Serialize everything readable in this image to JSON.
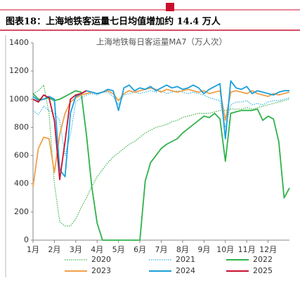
{
  "caption": "图表18：上海地铁客运量七日均值增加约 14.4 万人",
  "chart_data": {
    "type": "line",
    "title": "上海地铁每日客运量MA7（万人次）",
    "x": [
      1,
      1.25,
      1.5,
      1.75,
      2,
      2.25,
      2.5,
      2.75,
      3,
      3.25,
      3.5,
      3.75,
      4,
      4.25,
      4.5,
      4.75,
      5,
      5.25,
      5.5,
      5.75,
      6,
      6.25,
      6.5,
      6.75,
      7,
      7.25,
      7.5,
      7.75,
      8,
      8.25,
      8.5,
      8.75,
      9,
      9.25,
      9.5,
      9.75,
      10,
      10.25,
      10.5,
      10.75,
      11,
      11.25,
      11.5,
      11.75,
      12,
      12.25,
      12.5,
      12.75,
      13
    ],
    "xlim": [
      1,
      13
    ],
    "xticks": [
      {
        "value": 1,
        "label": "1月"
      },
      {
        "value": 2,
        "label": "2月"
      },
      {
        "value": 3,
        "label": "3月"
      },
      {
        "value": 4,
        "label": "4月"
      },
      {
        "value": 5,
        "label": "5月"
      },
      {
        "value": 6,
        "label": "6月"
      },
      {
        "value": 7,
        "label": "7月"
      },
      {
        "value": 8,
        "label": "8月"
      },
      {
        "value": 9,
        "label": "9月"
      },
      {
        "value": 10,
        "label": "10月"
      },
      {
        "value": 11,
        "label": "11月"
      },
      {
        "value": 12,
        "label": "12月"
      }
    ],
    "ylim": [
      0,
      1400
    ],
    "yticks": [
      0,
      200,
      400,
      600,
      800,
      1000,
      1200,
      1400
    ],
    "series": [
      {
        "name": "2020",
        "color": "#3cb44b",
        "style": "dotted",
        "values": [
          1040,
          1060,
          1100,
          900,
          400,
          130,
          100,
          100,
          150,
          230,
          300,
          380,
          450,
          500,
          550,
          590,
          620,
          650,
          680,
          700,
          730,
          760,
          780,
          800,
          810,
          820,
          840,
          850,
          870,
          880,
          890,
          900,
          900,
          900,
          910,
          920,
          920,
          930,
          930,
          930,
          940,
          930,
          940,
          950,
          960,
          970,
          980,
          990,
          1000
        ]
      },
      {
        "name": "2021",
        "color": "#35b5e5",
        "style": "dotted",
        "values": [
          920,
          890,
          950,
          920,
          900,
          850,
          600,
          750,
          980,
          1010,
          1030,
          1040,
          1030,
          1050,
          1050,
          1020,
          960,
          1030,
          1040,
          1050,
          1040,
          1050,
          1060,
          1050,
          1060,
          1040,
          1050,
          1060,
          1050,
          1040,
          1050,
          1040,
          1030,
          1010,
          1000,
          990,
          800,
          960,
          980,
          980,
          990,
          960,
          970,
          960,
          980,
          990,
          990,
          1000,
          1010
        ]
      },
      {
        "name": "2022",
        "color": "#2fb24a",
        "style": "solid",
        "values": [
          1040,
          1000,
          1000,
          1010,
          990,
          1000,
          1020,
          1040,
          1060,
          1050,
          750,
          380,
          120,
          0,
          0,
          0,
          0,
          0,
          0,
          0,
          0,
          420,
          550,
          600,
          650,
          680,
          700,
          720,
          760,
          790,
          820,
          850,
          880,
          870,
          900,
          860,
          560,
          900,
          910,
          920,
          920,
          920,
          930,
          850,
          880,
          860,
          700,
          300,
          370
        ]
      },
      {
        "name": "2023",
        "color": "#f0a04b",
        "style": "solid",
        "values": [
          380,
          650,
          730,
          720,
          480,
          750,
          900,
          980,
          1010,
          1030,
          1040,
          1050,
          1040,
          1050,
          1060,
          1040,
          990,
          1040,
          1060,
          1050,
          1060,
          1070,
          1080,
          1070,
          1050,
          1070,
          1060,
          1050,
          1060,
          1070,
          1060,
          1050,
          1060,
          1040,
          1050,
          1060,
          850,
          1050,
          1060,
          1050,
          1040,
          1060,
          1040,
          1030,
          1020,
          1040,
          1030,
          1040,
          1050
        ]
      },
      {
        "name": "2024",
        "color": "#1a9fdb",
        "style": "solid",
        "values": [
          1020,
          990,
          1000,
          1020,
          1000,
          500,
          450,
          900,
          1020,
          1040,
          1060,
          1050,
          1040,
          1050,
          1070,
          1060,
          920,
          1080,
          1100,
          1060,
          1080,
          1070,
          1090,
          1060,
          1080,
          1100,
          1080,
          1090,
          1070,
          1080,
          1100,
          1080,
          1040,
          1070,
          1090,
          1110,
          720,
          1130,
          1080,
          1070,
          1090,
          1040,
          1060,
          1050,
          1040,
          1030,
          1050,
          1060,
          1060
        ]
      },
      {
        "name": "2025",
        "color": "#c8102e",
        "style": "solid",
        "values": [
          1000,
          980,
          1030,
          1010,
          850,
          430,
          700,
          1000,
          1030,
          1040,
          1060,
          null,
          null,
          null,
          null,
          null,
          null,
          null,
          null,
          null,
          null,
          null,
          null,
          null,
          null,
          null,
          null,
          null,
          null,
          null,
          null,
          null,
          null,
          null,
          null,
          null,
          null,
          null,
          null,
          null,
          null,
          null,
          null,
          null,
          null,
          null,
          null,
          null,
          null
        ]
      }
    ]
  }
}
